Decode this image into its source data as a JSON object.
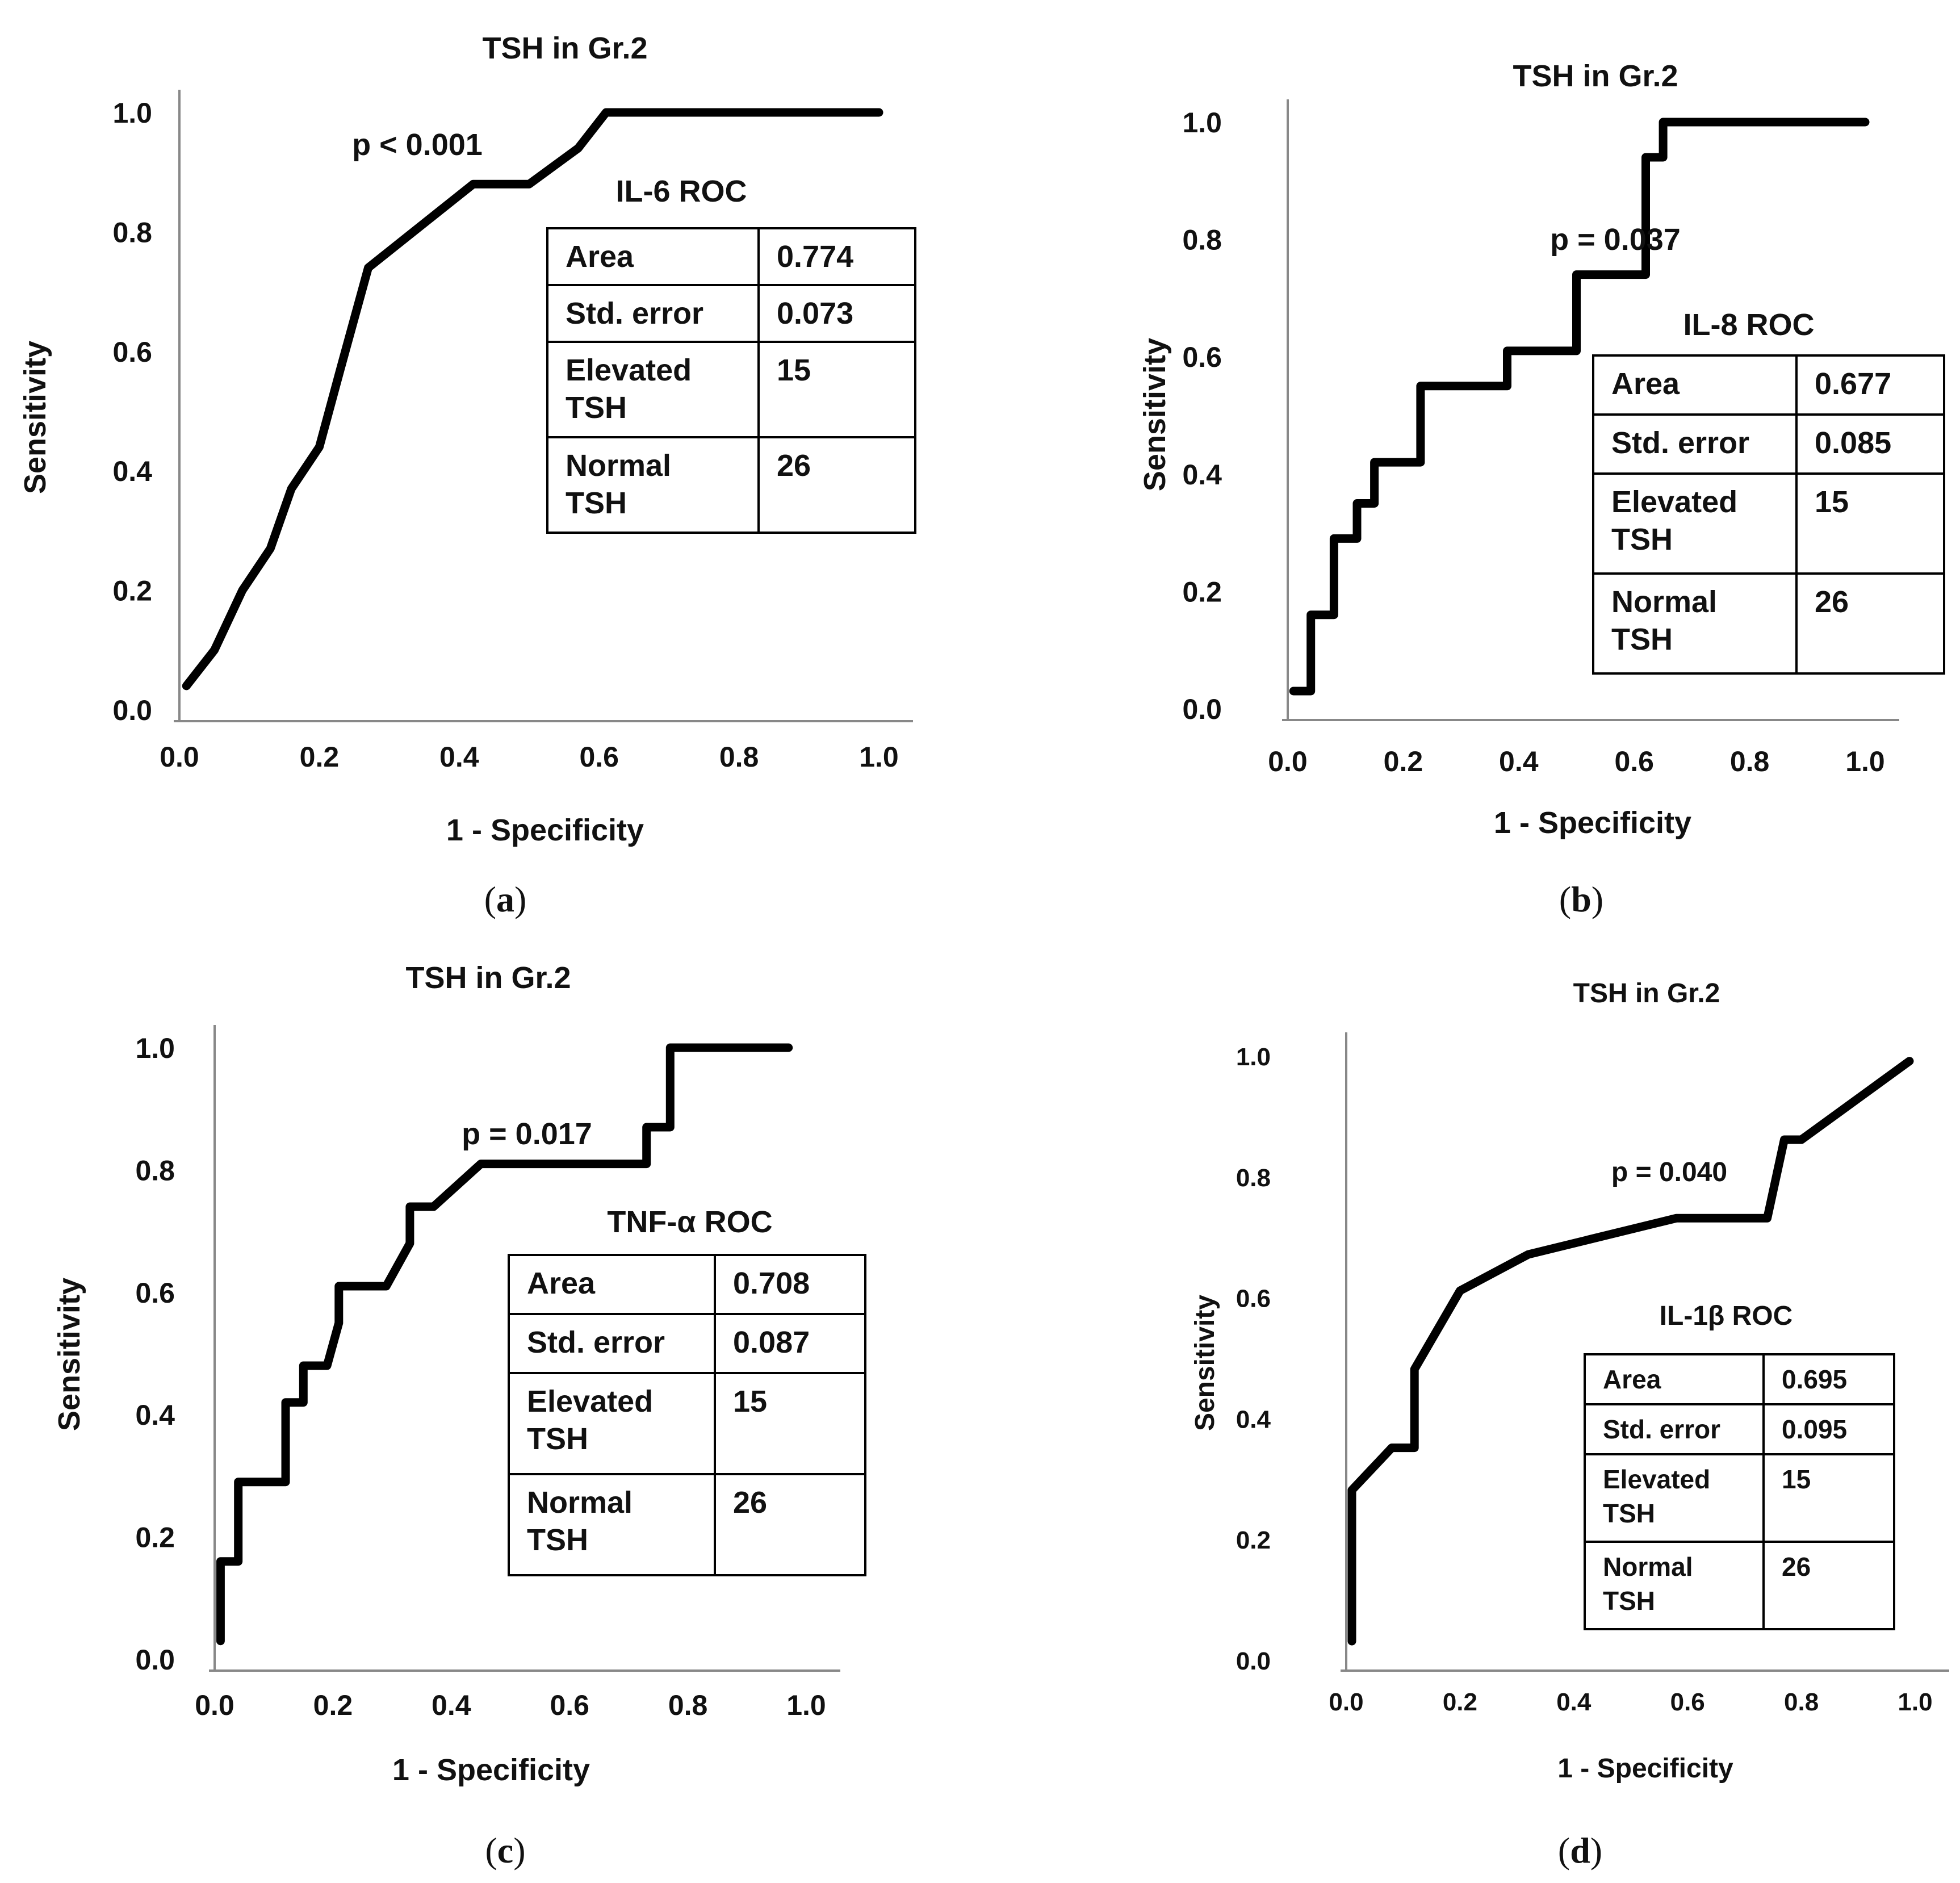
{
  "chart_data": [
    {
      "type": "line",
      "panel": "a",
      "title": "TSH in Gr.2",
      "xlabel": "1 - Specificity",
      "ylabel": "Sensitivity",
      "xlim": [
        0,
        1
      ],
      "ylim": [
        0,
        1
      ],
      "xticks": [
        "0.0",
        "0.2",
        "0.4",
        "0.6",
        "0.8",
        "1.0"
      ],
      "yticks": [
        "0.0",
        "0.2",
        "0.4",
        "0.6",
        "0.8",
        "1.0"
      ],
      "p_value": "p < 0.001",
      "roc_title": "IL-6 ROC",
      "stats": [
        {
          "label": [
            "Area"
          ],
          "value": "0.774"
        },
        {
          "label": [
            "Std. error"
          ],
          "value": "0.073"
        },
        {
          "label": [
            "Elevated",
            "TSH"
          ],
          "value": "15"
        },
        {
          "label": [
            "Normal",
            "TSH"
          ],
          "value": "26"
        }
      ],
      "series": [
        {
          "name": "IL-6",
          "x": [
            0.01,
            0.05,
            0.09,
            0.13,
            0.16,
            0.2,
            0.23,
            0.27,
            0.42,
            0.5,
            0.57,
            0.61,
            1.0
          ],
          "y": [
            0.04,
            0.1,
            0.2,
            0.27,
            0.37,
            0.44,
            0.57,
            0.74,
            0.88,
            0.88,
            0.94,
            1.0,
            1.0
          ]
        }
      ]
    },
    {
      "type": "line",
      "panel": "b",
      "title": "TSH in Gr.2",
      "xlabel": "1 - Specificity",
      "ylabel": "Sensitivity",
      "xlim": [
        0,
        1
      ],
      "ylim": [
        0,
        1
      ],
      "xticks": [
        "0.0",
        "0.2",
        "0.4",
        "0.6",
        "0.8",
        "1.0"
      ],
      "yticks": [
        "0.0",
        "0.2",
        "0.4",
        "0.6",
        "0.8",
        "1.0"
      ],
      "p_value": "p = 0.037",
      "roc_title": "IL-8 ROC",
      "stats": [
        {
          "label": [
            "Area"
          ],
          "value": "0.677"
        },
        {
          "label": [
            "Std. error"
          ],
          "value": "0.085"
        },
        {
          "label": [
            "Elevated",
            "TSH"
          ],
          "value": "15"
        },
        {
          "label": [
            "Normal",
            "TSH"
          ],
          "value": "26"
        }
      ],
      "series": [
        {
          "name": "IL-8",
          "x": [
            0.01,
            0.04,
            0.04,
            0.08,
            0.08,
            0.12,
            0.12,
            0.15,
            0.15,
            0.23,
            0.23,
            0.38,
            0.38,
            0.5,
            0.5,
            0.62,
            0.62,
            0.65,
            0.65,
            1.0
          ],
          "y": [
            0.03,
            0.03,
            0.16,
            0.16,
            0.29,
            0.29,
            0.35,
            0.35,
            0.42,
            0.42,
            0.55,
            0.55,
            0.61,
            0.61,
            0.74,
            0.74,
            0.94,
            0.94,
            1.0,
            1.0
          ]
        }
      ]
    },
    {
      "type": "line",
      "panel": "c",
      "title": "TSH in Gr.2",
      "xlabel": "1 - Specificity",
      "ylabel": "Sensitivity",
      "xlim": [
        0,
        1
      ],
      "ylim": [
        0,
        1
      ],
      "xticks": [
        "0.0",
        "0.2",
        "0.4",
        "0.6",
        "0.8",
        "1.0"
      ],
      "yticks": [
        "0.0",
        "0.2",
        "0.4",
        "0.6",
        "0.8",
        "1.0"
      ],
      "p_value": "p = 0.017",
      "roc_title": "TNF-α ROC",
      "stats": [
        {
          "label": [
            "Area"
          ],
          "value": "0.708"
        },
        {
          "label": [
            "Std. error"
          ],
          "value": "0.087"
        },
        {
          "label": [
            "Elevated",
            "TSH"
          ],
          "value": "15"
        },
        {
          "label": [
            "Normal",
            "TSH"
          ],
          "value": "26"
        }
      ],
      "series": [
        {
          "name": "TNF-α",
          "x": [
            0.01,
            0.01,
            0.04,
            0.04,
            0.12,
            0.12,
            0.15,
            0.15,
            0.19,
            0.21,
            0.21,
            0.29,
            0.33,
            0.33,
            0.37,
            0.45,
            0.73,
            0.73,
            0.77,
            0.77,
            0.97
          ],
          "y": [
            0.03,
            0.16,
            0.16,
            0.29,
            0.29,
            0.42,
            0.42,
            0.48,
            0.48,
            0.55,
            0.61,
            0.61,
            0.68,
            0.74,
            0.74,
            0.81,
            0.81,
            0.87,
            0.87,
            1.0,
            1.0
          ]
        }
      ]
    },
    {
      "type": "line",
      "panel": "d",
      "title": "TSH in Gr.2",
      "xlabel": "1 - Specificity",
      "ylabel": "Sensitivity",
      "xlim": [
        0,
        1
      ],
      "ylim": [
        0,
        1
      ],
      "xticks": [
        "0.0",
        "0.2",
        "0.4",
        "0.6",
        "0.8",
        "1.0"
      ],
      "yticks": [
        "0.0",
        "0.2",
        "0.4",
        "0.6",
        "0.8",
        "1.0"
      ],
      "p_value": "p = 0.040",
      "roc_title": "IL-1β ROC",
      "stats": [
        {
          "label": [
            "Area"
          ],
          "value": "0.695"
        },
        {
          "label": [
            "Std. error"
          ],
          "value": "0.095"
        },
        {
          "label": [
            "Elevated",
            "TSH"
          ],
          "value": "15"
        },
        {
          "label": [
            "Normal",
            "TSH"
          ],
          "value": "26"
        }
      ],
      "series": [
        {
          "name": "IL-1β",
          "x": [
            0.01,
            0.01,
            0.08,
            0.12,
            0.12,
            0.2,
            0.32,
            0.58,
            0.74,
            0.77,
            0.8,
            0.99
          ],
          "y": [
            0.03,
            0.28,
            0.35,
            0.35,
            0.48,
            0.61,
            0.67,
            0.73,
            0.73,
            0.86,
            0.86,
            0.99
          ]
        }
      ]
    }
  ],
  "panel_labels": [
    "a",
    "b",
    "c",
    "d"
  ]
}
